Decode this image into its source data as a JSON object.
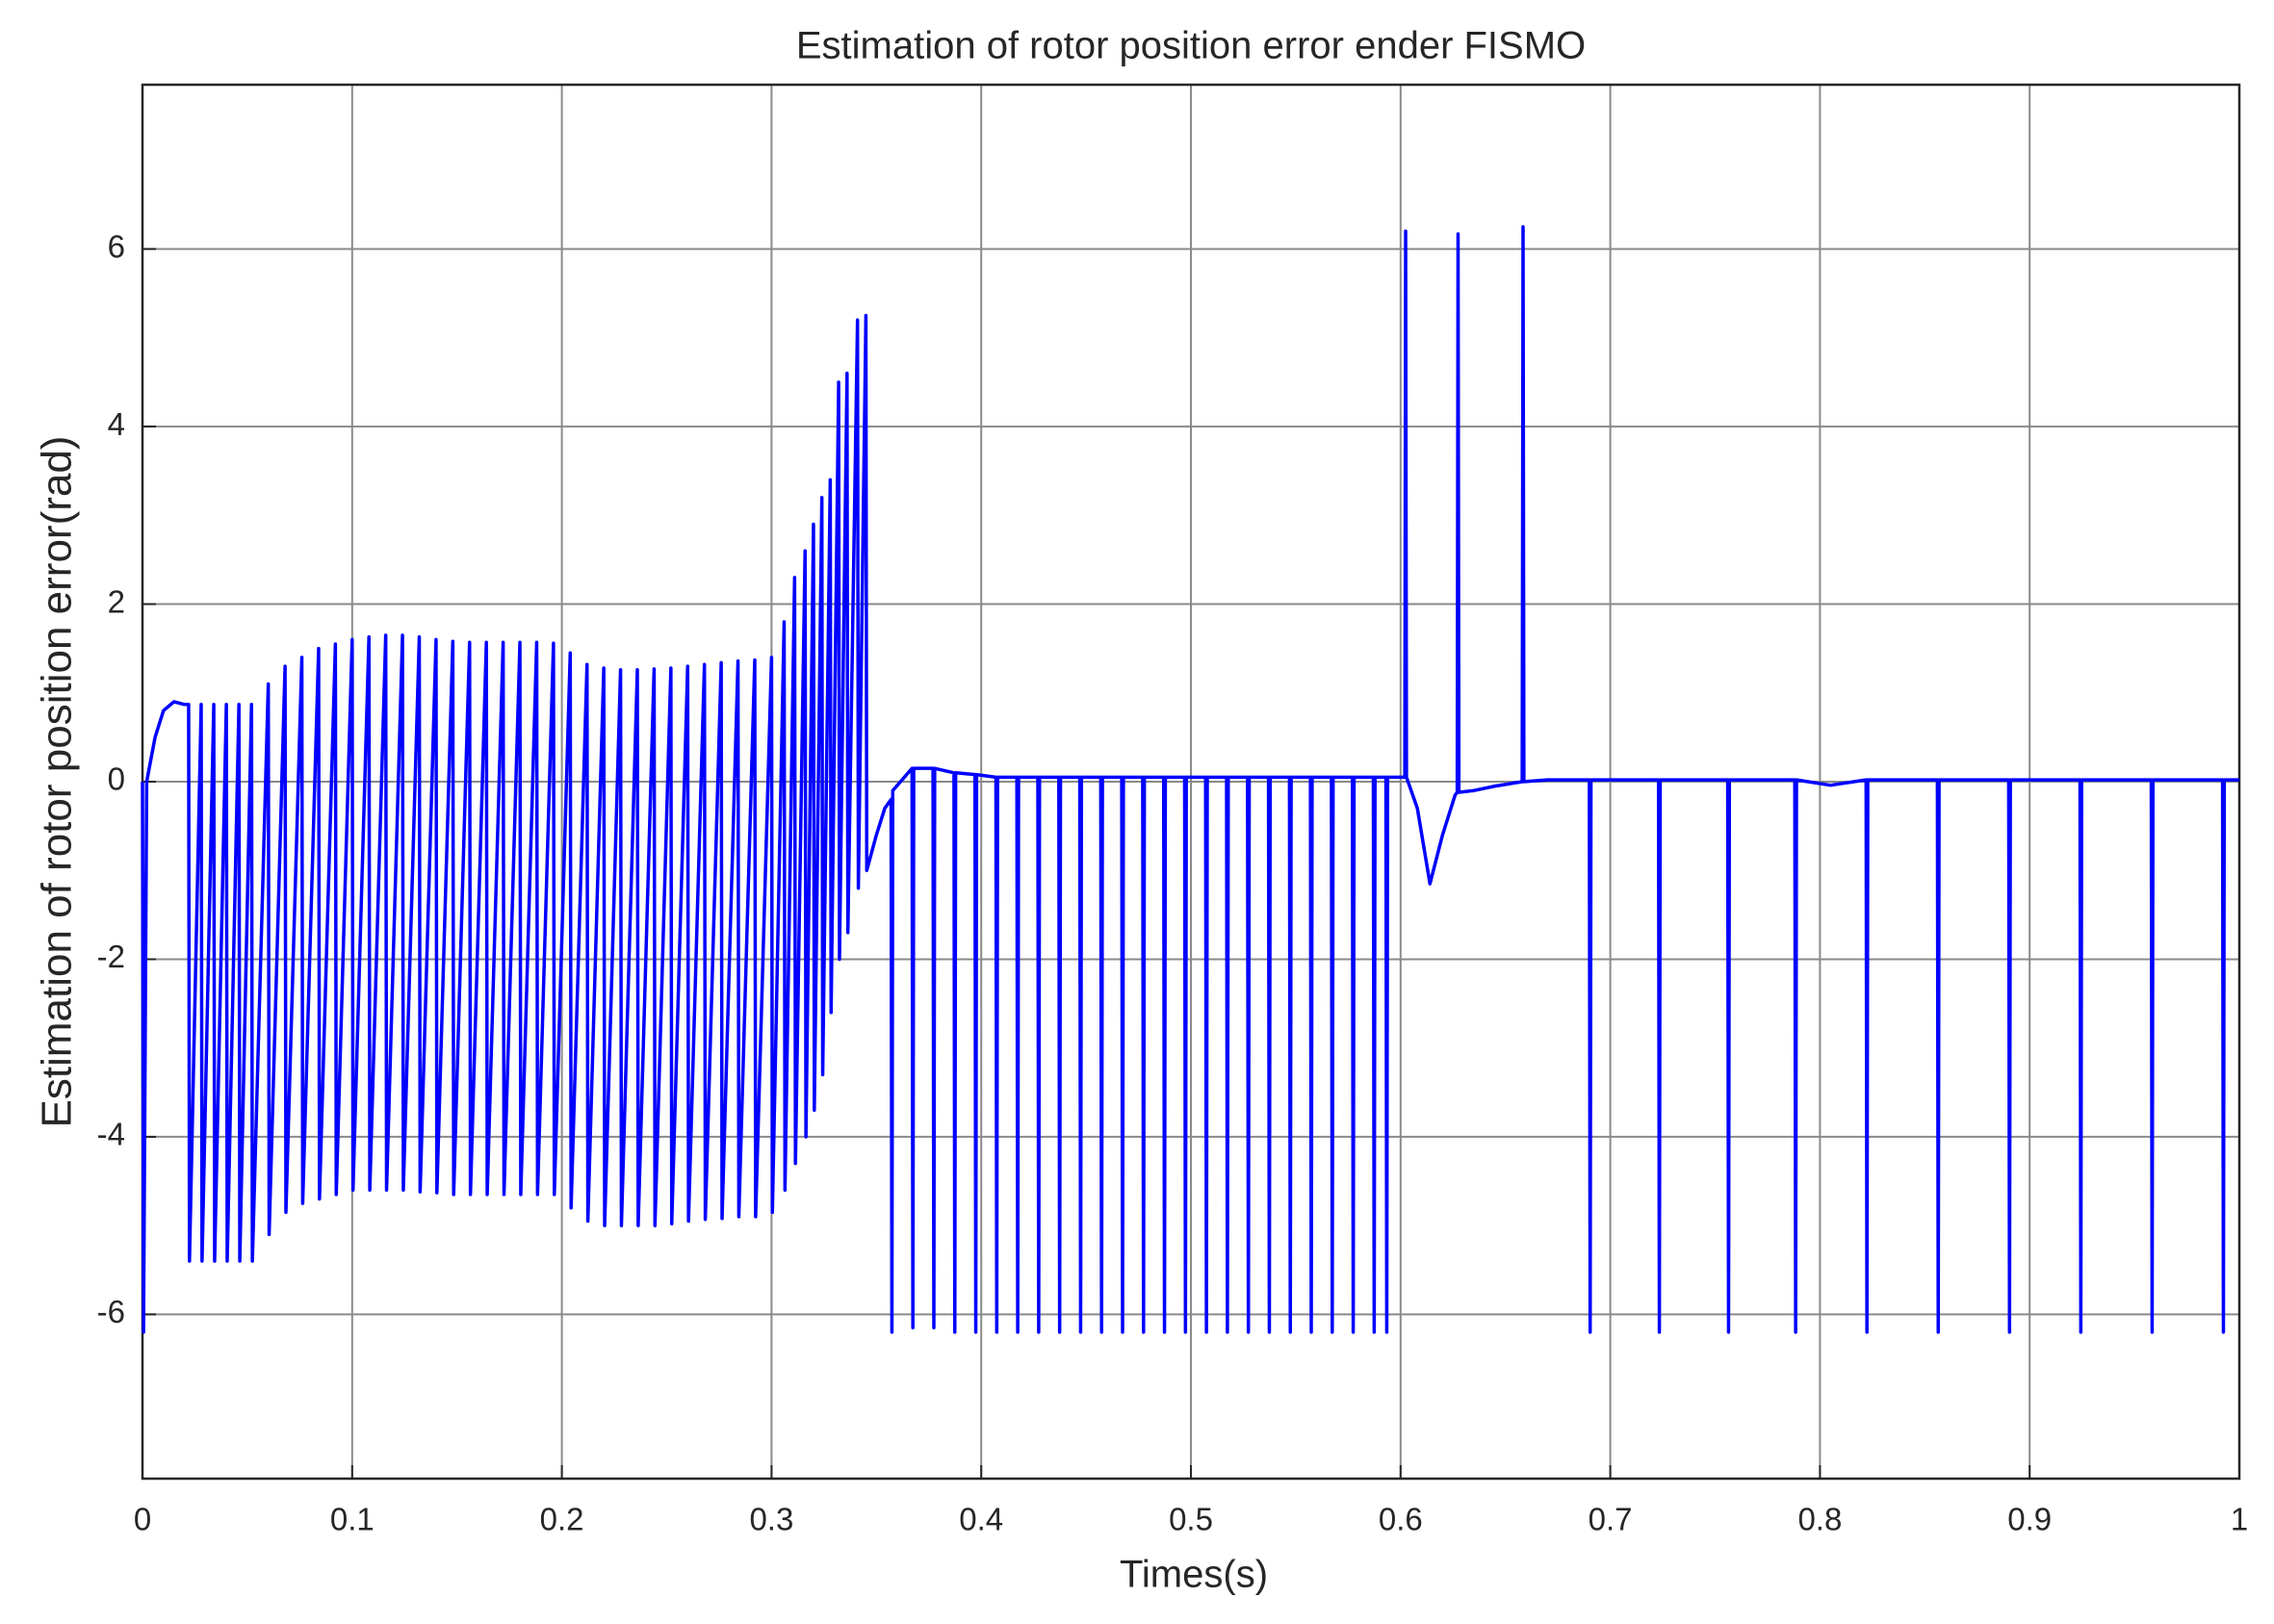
{
  "chart_data": {
    "type": "line",
    "title": "Estimation of rotor position error ender FISMO",
    "x_label": "Times(s)",
    "y_label": "Estimation of rotor position error(rad)",
    "xlim": [
      0,
      1
    ],
    "xticks": [
      0,
      0.1,
      0.2,
      0.3,
      0.4,
      0.5,
      0.6,
      0.7,
      0.8,
      0.9,
      1
    ],
    "ylim": [
      -7.85,
      7.85
    ],
    "yticks": [
      -6,
      -4,
      -2,
      0,
      2,
      4,
      6
    ],
    "grid": true,
    "x": [
      0,
      0.0005,
      0.002,
      0.006,
      0.01,
      0.015,
      0.02,
      0.022,
      0.0224,
      0.028,
      0.0284,
      0.034,
      0.0344,
      0.04,
      0.0404,
      0.046,
      0.0464,
      0.052,
      0.0524,
      0.06,
      0.0604,
      0.068,
      0.0684,
      0.076,
      0.0764,
      0.084,
      0.0844,
      0.092,
      0.0924,
      0.1,
      0.1004,
      0.108,
      0.1084,
      0.116,
      0.1164,
      0.124,
      0.1244,
      0.132,
      0.1324,
      0.14,
      0.1404,
      0.148,
      0.1484,
      0.156,
      0.1564,
      0.164,
      0.1644,
      0.172,
      0.1724,
      0.18,
      0.1804,
      0.188,
      0.1884,
      0.196,
      0.1964,
      0.204,
      0.2044,
      0.212,
      0.2124,
      0.22,
      0.2204,
      0.228,
      0.2284,
      0.236,
      0.2364,
      0.244,
      0.2444,
      0.252,
      0.2524,
      0.26,
      0.2604,
      0.268,
      0.2684,
      0.276,
      0.2764,
      0.284,
      0.2844,
      0.292,
      0.2924,
      0.3,
      0.3004,
      0.306,
      0.3064,
      0.311,
      0.3114,
      0.316,
      0.3164,
      0.32,
      0.3204,
      0.324,
      0.3244,
      0.328,
      0.3284,
      0.332,
      0.3324,
      0.336,
      0.3364,
      0.341,
      0.3414,
      0.345,
      0.3454,
      0.35,
      0.354,
      0.357,
      0.3574,
      0.3578,
      0.367,
      0.3674,
      0.3678,
      0.377,
      0.3774,
      0.3778,
      0.387,
      0.3874,
      0.3878,
      0.397,
      0.3974,
      0.3978,
      0.407,
      0.4074,
      0.4078,
      0.417,
      0.4174,
      0.4178,
      0.427,
      0.4274,
      0.4278,
      0.437,
      0.4374,
      0.4378,
      0.447,
      0.4474,
      0.4478,
      0.457,
      0.4574,
      0.4578,
      0.467,
      0.4674,
      0.4678,
      0.477,
      0.4774,
      0.4778,
      0.487,
      0.4874,
      0.4878,
      0.497,
      0.4974,
      0.4978,
      0.507,
      0.5074,
      0.5078,
      0.517,
      0.5174,
      0.5178,
      0.527,
      0.5274,
      0.5278,
      0.537,
      0.5374,
      0.5378,
      0.547,
      0.5474,
      0.5478,
      0.557,
      0.5574,
      0.5578,
      0.567,
      0.5674,
      0.5678,
      0.577,
      0.5774,
      0.5778,
      0.587,
      0.5874,
      0.5878,
      0.593,
      0.5934,
      0.5938,
      0.6,
      0.602,
      0.6024,
      0.6028,
      0.608,
      0.614,
      0.62,
      0.626,
      0.627,
      0.6274,
      0.6278,
      0.635,
      0.645,
      0.658,
      0.6584,
      0.6588,
      0.67,
      0.69,
      0.6904,
      0.6908,
      0.723,
      0.7234,
      0.7238,
      0.756,
      0.7564,
      0.7568,
      0.788,
      0.7884,
      0.7888,
      0.805,
      0.822,
      0.8224,
      0.8228,
      0.856,
      0.8564,
      0.8568,
      0.89,
      0.8904,
      0.8908,
      0.924,
      0.9244,
      0.9248,
      0.958,
      0.9584,
      0.9588,
      0.992,
      0.9924,
      0.9928,
      1
    ],
    "series": [
      {
        "color": "#0000ff",
        "values": [
          0,
          -6.2,
          0,
          0.5,
          0.8,
          0.9,
          0.87,
          0.87,
          -5.4,
          0.87,
          -5.4,
          0.87,
          -5.4,
          0.87,
          -5.4,
          0.87,
          -5.4,
          0.87,
          -5.4,
          1.1,
          -5.1,
          1.3,
          -4.85,
          1.4,
          -4.75,
          1.5,
          -4.7,
          1.55,
          -4.65,
          1.6,
          -4.6,
          1.63,
          -4.6,
          1.65,
          -4.6,
          1.65,
          -4.6,
          1.63,
          -4.62,
          1.6,
          -4.63,
          1.58,
          -4.65,
          1.57,
          -4.65,
          1.57,
          -4.65,
          1.57,
          -4.65,
          1.57,
          -4.65,
          1.57,
          -4.65,
          1.56,
          -4.65,
          1.45,
          -4.8,
          1.32,
          -4.95,
          1.28,
          -5,
          1.26,
          -5,
          1.26,
          -5,
          1.27,
          -5,
          1.28,
          -4.98,
          1.3,
          -4.95,
          1.32,
          -4.93,
          1.34,
          -4.92,
          1.36,
          -4.9,
          1.37,
          -4.9,
          1.4,
          -4.85,
          1.8,
          -4.6,
          2.3,
          -4.3,
          2.6,
          -4,
          2.9,
          -3.7,
          3.2,
          -3.3,
          3.4,
          -2.6,
          4.5,
          -2,
          4.6,
          -1.7,
          5.2,
          -1.2,
          5.25,
          -1,
          -0.6,
          -0.3,
          -0.2,
          -6.2,
          -0.1,
          0.15,
          -6.15,
          0.15,
          0.15,
          -6.15,
          0.15,
          0.1,
          -6.2,
          0.1,
          0.08,
          -6.2,
          0.08,
          0.05,
          -6.2,
          0.05,
          0.05,
          -6.2,
          0.05,
          0.05,
          -6.2,
          0.05,
          0.05,
          -6.2,
          0.05,
          0.05,
          -6.2,
          0.05,
          0.05,
          -6.2,
          0.05,
          0.05,
          -6.2,
          0.05,
          0.05,
          -6.2,
          0.05,
          0.05,
          -6.2,
          0.05,
          0.05,
          -6.2,
          0.05,
          0.05,
          -6.2,
          0.05,
          0.05,
          -6.2,
          0.05,
          0.05,
          -6.2,
          0.05,
          0.05,
          -6.2,
          0.05,
          0.05,
          -6.2,
          0.05,
          0.05,
          -6.2,
          0.05,
          0.05,
          -6.2,
          0.05,
          0.05,
          -6.2,
          0.05,
          0.05,
          -6.2,
          0.05,
          0.05,
          -6.2,
          0.05,
          0.05,
          0.05,
          6.2,
          0.05,
          -0.3,
          -1.15,
          -0.6,
          -0.15,
          -0.12,
          6.17,
          -0.12,
          -0.1,
          -0.05,
          0,
          6.25,
          0,
          0.02,
          0.02,
          -6.2,
          0.02,
          0.02,
          -6.2,
          0.02,
          0.02,
          -6.2,
          0.02,
          0.02,
          -6.2,
          0.02,
          -0.04,
          0.02,
          -6.2,
          0.02,
          0.02,
          -6.2,
          0.02,
          0.02,
          -6.2,
          0.02,
          0.02,
          -6.2,
          0.02,
          0.02,
          -6.2,
          0.02,
          0.02,
          -6.2,
          0.02,
          0.02
        ]
      }
    ]
  }
}
